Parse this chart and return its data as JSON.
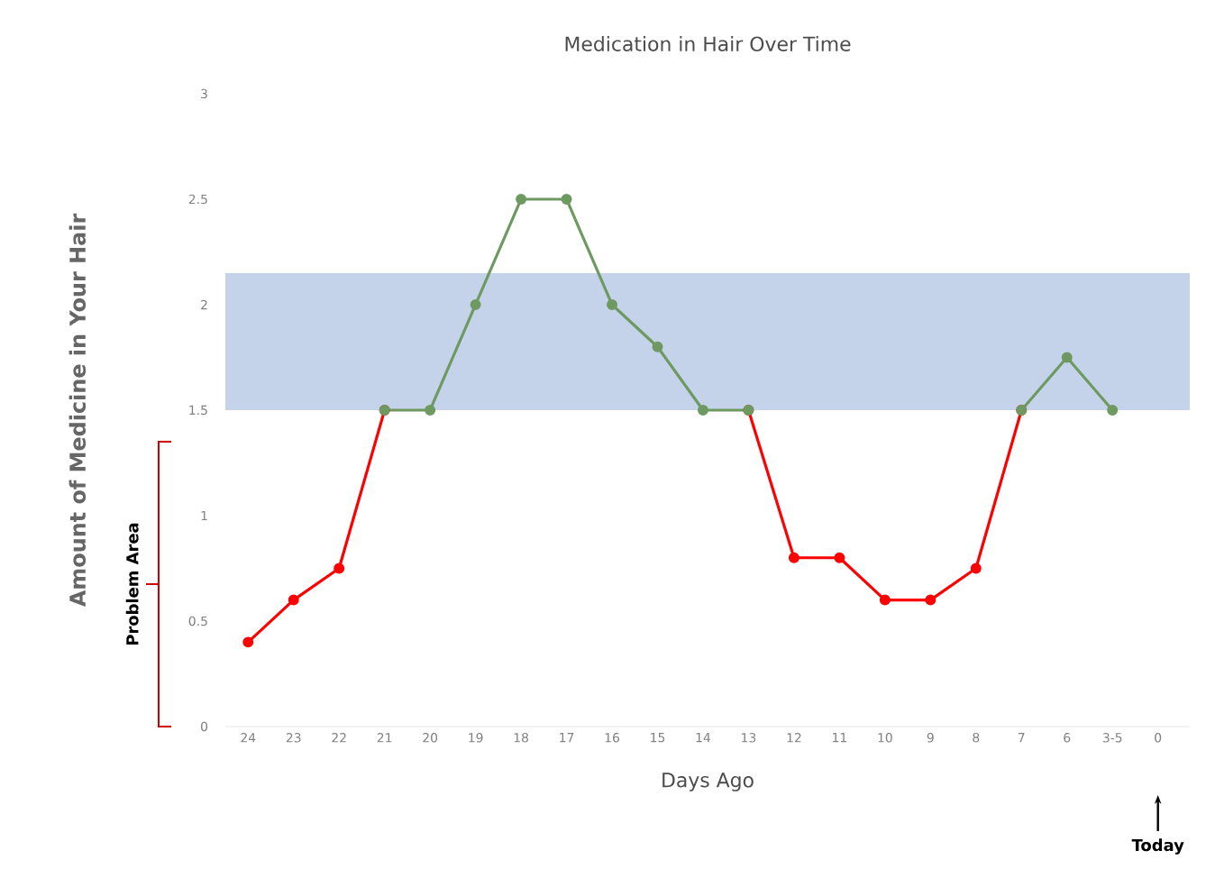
{
  "chart_data": {
    "type": "line",
    "title": "Medication in Hair Over Time",
    "xlabel": "Days Ago",
    "ylabel": "Amount of Medicine in Your Hair",
    "categories": [
      "24",
      "23",
      "22",
      "21",
      "20",
      "19",
      "18",
      "17",
      "16",
      "15",
      "14",
      "13",
      "12",
      "11",
      "10",
      "9",
      "8",
      "7",
      "6",
      "3-5",
      "0"
    ],
    "series": [
      {
        "color": "#ff0000",
        "values": [
          0.4,
          0.6,
          0.75,
          1.5,
          null,
          null,
          null,
          null,
          null,
          null,
          null,
          1.5,
          0.8,
          0.8,
          0.6,
          0.6,
          0.75,
          1.5,
          null,
          null,
          null
        ]
      },
      {
        "color": "#6e9a62",
        "values": [
          null,
          null,
          null,
          1.5,
          1.5,
          2,
          2.5,
          2.5,
          2,
          1.8,
          1.5,
          1.5,
          null,
          null,
          null,
          null,
          null,
          1.5,
          1.75,
          1.5,
          null
        ]
      }
    ],
    "ylim": [
      0,
      3
    ],
    "yticks": [
      0,
      0.5,
      1,
      1.5,
      2,
      2.5,
      3
    ],
    "bands": [
      {
        "axis": "y",
        "from": 1.5,
        "to": 2.15,
        "color": "#c5d3ea"
      }
    ],
    "annotations": [
      "Problem Area",
      "Today"
    ],
    "marker": "circle",
    "line_style": "solid"
  }
}
